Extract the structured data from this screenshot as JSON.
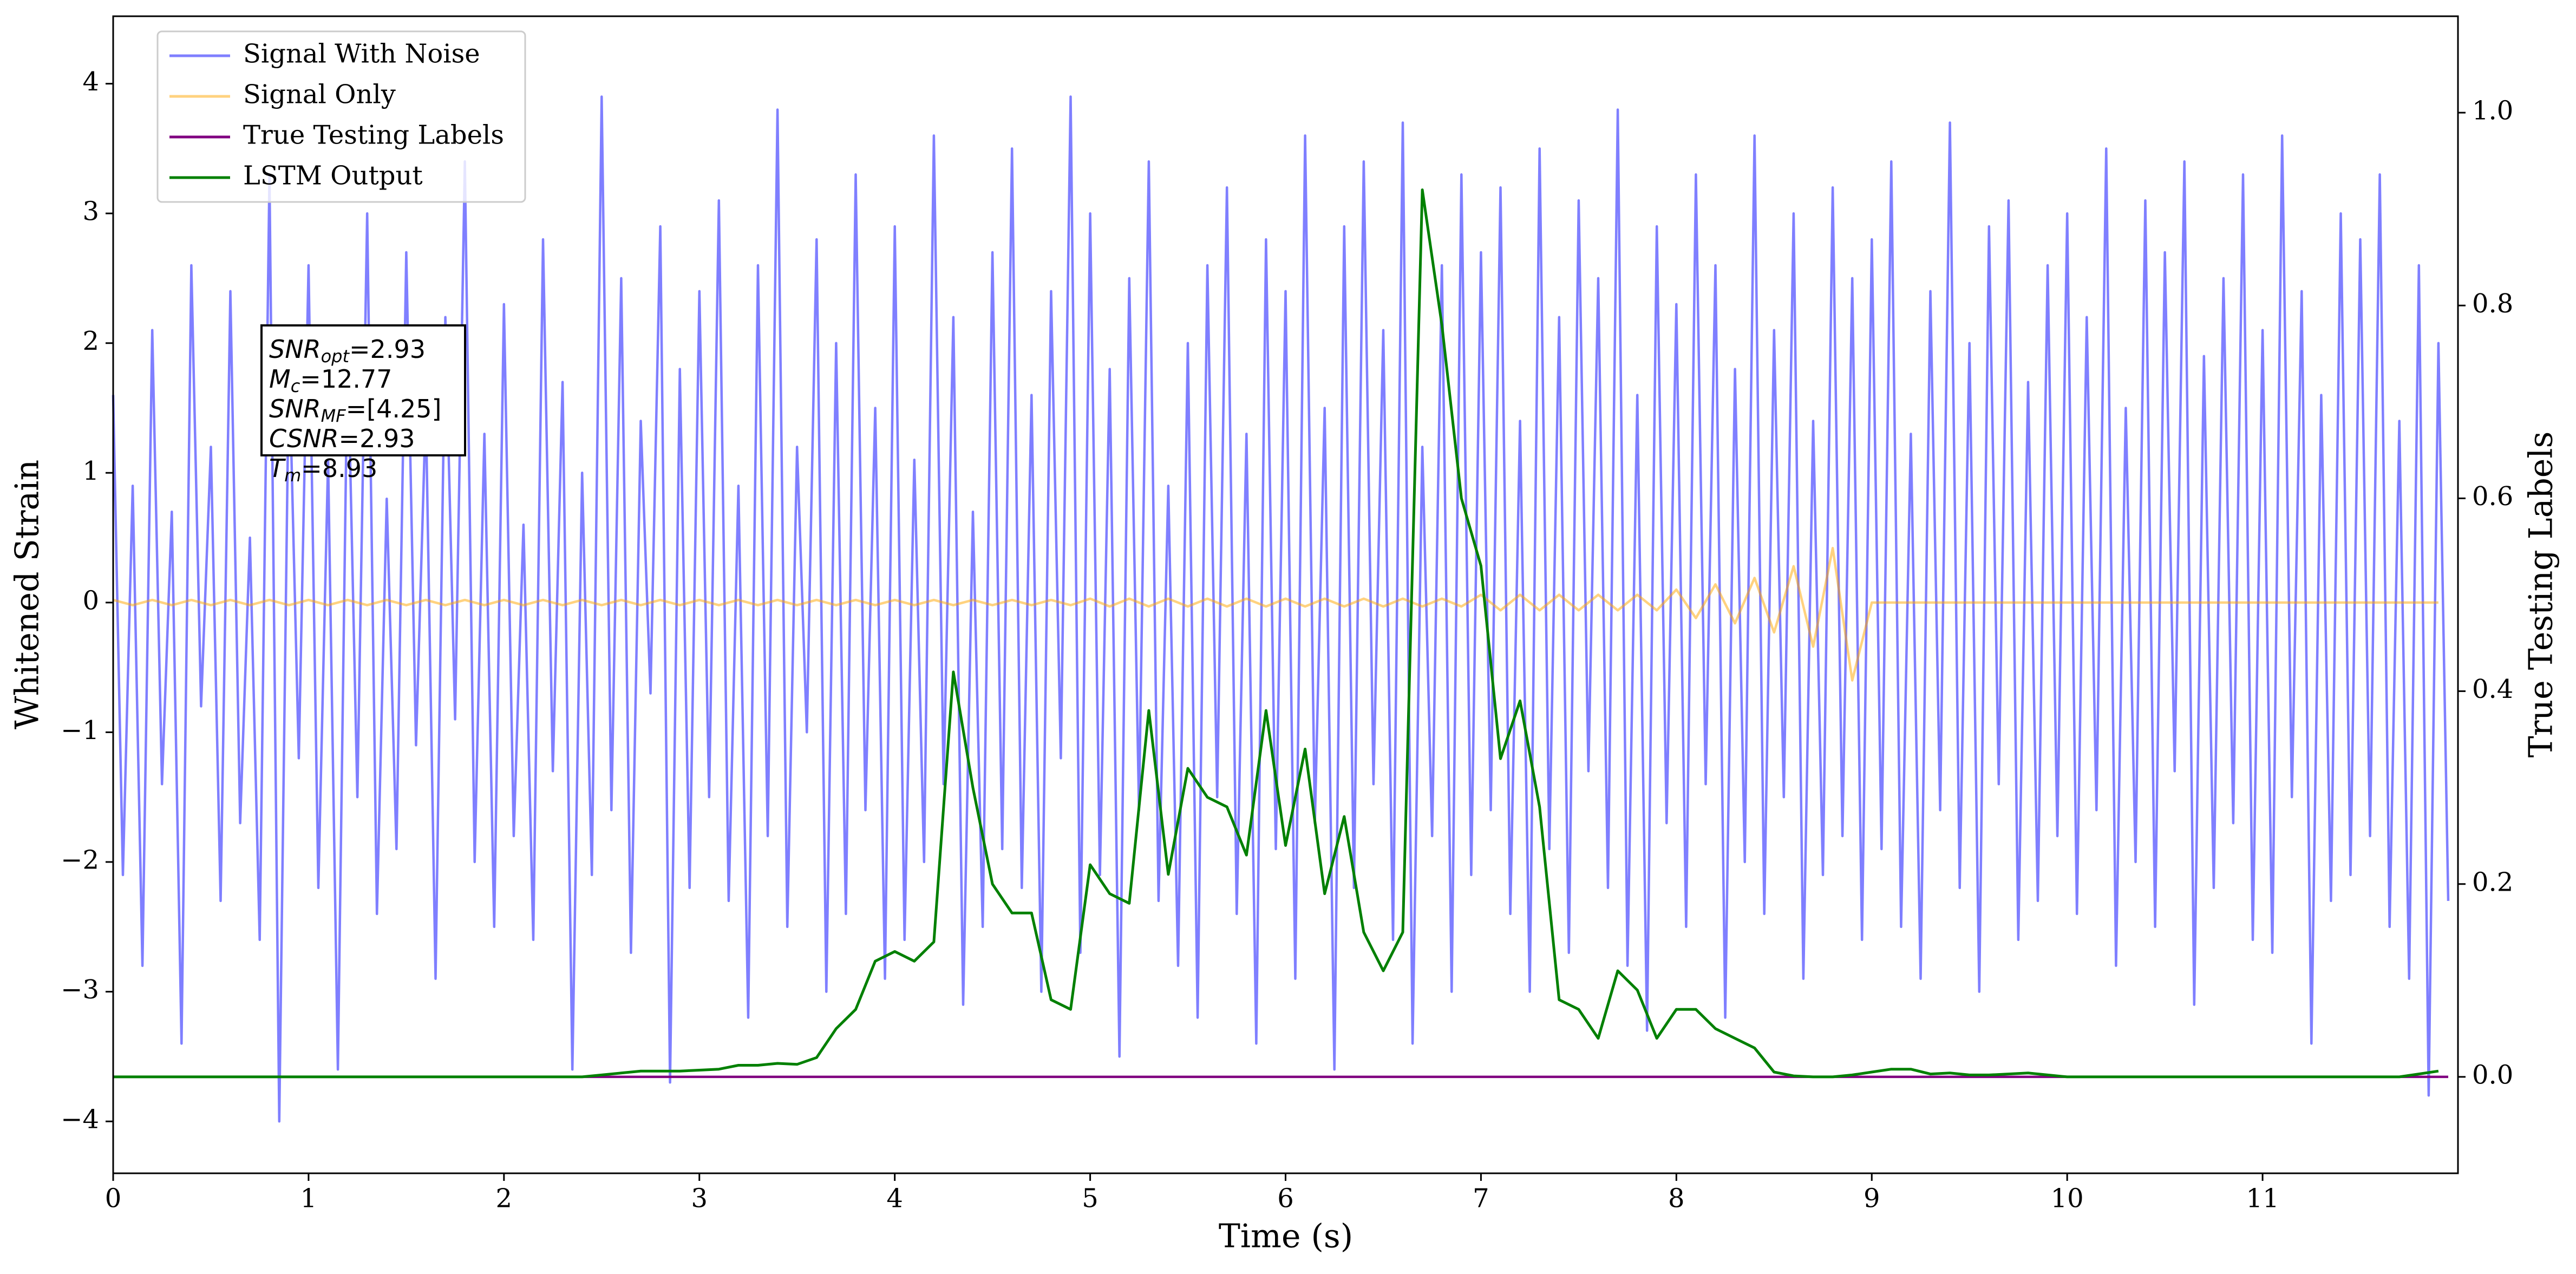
{
  "chart_data": {
    "type": "line",
    "xlabel": "Time (s)",
    "ylabel": "Whitened Strain",
    "y2label": "True Testing Labels",
    "xlim": [
      0,
      12
    ],
    "xticks": [
      0,
      1,
      2,
      3,
      4,
      5,
      6,
      7,
      8,
      9,
      10,
      11
    ],
    "ylim": [
      -4.4,
      4.52
    ],
    "yticks": [
      {
        "value": -4,
        "label": "−4"
      },
      {
        "value": -3,
        "label": "−3"
      },
      {
        "value": -2,
        "label": "−2"
      },
      {
        "value": -1,
        "label": "−1"
      },
      0,
      1,
      2,
      3,
      4
    ],
    "y2lim": [
      -0.1,
      1.1
    ],
    "y2ticks": [
      {
        "value": 0,
        "label": "0.0"
      },
      {
        "value": 0.2,
        "label": "0.2"
      },
      {
        "value": 0.4,
        "label": "0.4"
      },
      {
        "value": 0.6,
        "label": "0.6"
      },
      {
        "value": 0.8,
        "label": "0.8"
      },
      {
        "value": 1,
        "label": "1.0"
      }
    ],
    "grid": false,
    "legend": "upper left",
    "annotation": {
      "lines": [
        {
          "main": "SNR",
          "sub": "opt",
          "rest": "=2.93"
        },
        {
          "main": "M",
          "sub": "c",
          "rest": "=12.77"
        },
        {
          "main": "SNR",
          "sub": "MF",
          "rest": "=[4.25]"
        },
        {
          "main": "CSNR",
          "rest": "=2.93"
        },
        {
          "main": "T",
          "sub": "m",
          "rest": "=8.93"
        }
      ]
    },
    "series": [
      {
        "name": "Signal With Noise",
        "color": "#7f7fff",
        "opacity": 1,
        "axis": "y",
        "x": [
          0,
          0.05,
          0.1,
          0.15,
          0.2,
          0.25,
          0.3,
          0.35,
          0.4,
          0.45,
          0.5,
          0.55,
          0.6,
          0.65,
          0.7,
          0.75,
          0.8,
          0.85,
          0.9,
          0.95,
          1,
          1.05,
          1.1,
          1.15,
          1.2,
          1.25,
          1.3,
          1.35,
          1.4,
          1.45,
          1.5,
          1.55,
          1.6,
          1.65,
          1.7,
          1.75,
          1.8,
          1.85,
          1.9,
          1.95,
          2,
          2.05,
          2.1,
          2.15,
          2.2,
          2.25,
          2.3,
          2.35,
          2.4,
          2.45,
          2.5,
          2.55,
          2.6,
          2.65,
          2.7,
          2.75,
          2.8,
          2.85,
          2.9,
          2.95,
          3,
          3.05,
          3.1,
          3.15,
          3.2,
          3.25,
          3.3,
          3.35,
          3.4,
          3.45,
          3.5,
          3.55,
          3.6,
          3.65,
          3.7,
          3.75,
          3.8,
          3.85,
          3.9,
          3.95,
          4,
          4.05,
          4.1,
          4.15,
          4.2,
          4.25,
          4.3,
          4.35,
          4.4,
          4.45,
          4.5,
          4.55,
          4.6,
          4.65,
          4.7,
          4.75,
          4.8,
          4.85,
          4.9,
          4.95,
          5,
          5.05,
          5.1,
          5.15,
          5.2,
          5.25,
          5.3,
          5.35,
          5.4,
          5.45,
          5.5,
          5.55,
          5.6,
          5.65,
          5.7,
          5.75,
          5.8,
          5.85,
          5.9,
          5.95,
          6,
          6.05,
          6.1,
          6.15,
          6.2,
          6.25,
          6.3,
          6.35,
          6.4,
          6.45,
          6.5,
          6.55,
          6.6,
          6.65,
          6.7,
          6.75,
          6.8,
          6.85,
          6.9,
          6.95,
          7,
          7.05,
          7.1,
          7.15,
          7.2,
          7.25,
          7.3,
          7.35,
          7.4,
          7.45,
          7.5,
          7.55,
          7.6,
          7.65,
          7.7,
          7.75,
          7.8,
          7.85,
          7.9,
          7.95,
          8,
          8.05,
          8.1,
          8.15,
          8.2,
          8.25,
          8.3,
          8.35,
          8.4,
          8.45,
          8.5,
          8.55,
          8.6,
          8.65,
          8.7,
          8.75,
          8.8,
          8.85,
          8.9,
          8.95,
          9,
          9.05,
          9.1,
          9.15,
          9.2,
          9.25,
          9.3,
          9.35,
          9.4,
          9.45,
          9.5,
          9.55,
          9.6,
          9.65,
          9.7,
          9.75,
          9.8,
          9.85,
          9.9,
          9.95,
          10,
          10.05,
          10.1,
          10.15,
          10.2,
          10.25,
          10.3,
          10.35,
          10.4,
          10.45,
          10.5,
          10.55,
          10.6,
          10.65,
          10.7,
          10.75,
          10.8,
          10.85,
          10.9,
          10.95,
          11,
          11.05,
          11.1,
          11.15,
          11.2,
          11.25,
          11.3,
          11.35,
          11.4,
          11.45,
          11.5,
          11.55,
          11.6,
          11.65,
          11.7,
          11.75,
          11.8,
          11.85,
          11.9,
          11.95
        ],
        "values": [
          1.6,
          -2.1,
          0.9,
          -2.8,
          2.1,
          -1.4,
          0.7,
          -3.4,
          2.6,
          -0.8,
          1.2,
          -2.3,
          2.4,
          -1.7,
          0.5,
          -2.6,
          3.3,
          -4.0,
          1.9,
          -1.2,
          2.6,
          -2.2,
          1.1,
          -3.6,
          2.0,
          -1.5,
          3.0,
          -2.4,
          0.8,
          -1.9,
          2.7,
          -1.1,
          1.5,
          -2.9,
          2.2,
          -0.9,
          3.4,
          -2.0,
          1.3,
          -2.5,
          2.3,
          -1.8,
          0.6,
          -2.6,
          2.8,
          -1.3,
          1.7,
          -3.6,
          1.0,
          -2.1,
          3.9,
          -1.6,
          2.5,
          -2.7,
          1.4,
          -0.7,
          2.9,
          -3.7,
          1.8,
          -2.2,
          2.4,
          -1.5,
          3.1,
          -2.3,
          0.9,
          -3.2,
          2.6,
          -1.8,
          3.8,
          -2.5,
          1.2,
          -1.0,
          2.8,
          -3.0,
          2.0,
          -2.4,
          3.3,
          -1.6,
          1.5,
          -2.9,
          2.9,
          -2.6,
          1.1,
          -2.0,
          3.6,
          -1.4,
          2.2,
          -3.1,
          0.7,
          -2.5,
          2.7,
          -1.9,
          3.5,
          -2.2,
          1.6,
          -3.0,
          2.4,
          -1.2,
          3.9,
          -2.7,
          3.0,
          -2.1,
          1.8,
          -3.5,
          2.5,
          -1.6,
          3.4,
          -2.3,
          0.9,
          -2.8,
          2.0,
          -3.2,
          2.6,
          -1.5,
          3.2,
          -2.4,
          1.3,
          -3.4,
          2.8,
          -1.9,
          2.4,
          -2.9,
          3.6,
          -1.7,
          1.5,
          -3.6,
          2.9,
          -2.2,
          3.4,
          -1.4,
          2.1,
          -2.6,
          3.7,
          -3.4,
          1.2,
          -1.8,
          2.6,
          -3.0,
          3.3,
          -2.1,
          2.7,
          -1.6,
          3.2,
          -2.4,
          1.4,
          -3.0,
          3.5,
          -1.9,
          2.2,
          -2.7,
          3.1,
          -1.3,
          2.5,
          -2.2,
          3.8,
          -2.8,
          1.6,
          -3.3,
          2.9,
          -1.7,
          2.3,
          -2.5,
          3.3,
          -1.4,
          2.6,
          -3.2,
          1.8,
          -2.0,
          3.6,
          -2.4,
          2.1,
          -1.5,
          3.0,
          -2.9,
          1.4,
          -2.1,
          3.2,
          -1.8,
          2.5,
          -2.6,
          2.8,
          -1.9,
          3.4,
          -2.5,
          1.3,
          -2.9,
          2.4,
          -1.6,
          3.7,
          -2.2,
          2.0,
          -3.0,
          2.9,
          -1.4,
          3.1,
          -2.6,
          1.7,
          -2.3,
          2.6,
          -1.8,
          3.0,
          -2.4,
          2.2,
          -1.6,
          3.5,
          -2.8,
          1.5,
          -2.0,
          3.1,
          -2.5,
          2.7,
          -1.3,
          3.4,
          -3.1,
          1.9,
          -2.2,
          2.5,
          -1.7,
          3.3,
          -2.6,
          2.1,
          -2.7,
          3.6,
          -1.5,
          2.4,
          -3.4,
          1.6,
          -2.3,
          3.0,
          -2.1,
          2.8,
          -1.8,
          3.3,
          -2.5,
          1.4,
          -2.9,
          2.6,
          -3.8,
          2.0,
          -2.3
        ]
      },
      {
        "name": "Signal Only",
        "color": "#ffa500",
        "opacity": 0.5,
        "axis": "y",
        "x": [
          0,
          0.1,
          0.2,
          0.3,
          0.4,
          0.5,
          0.6,
          0.7,
          0.8,
          0.9,
          1,
          1.1,
          1.2,
          1.3,
          1.4,
          1.5,
          1.6,
          1.7,
          1.8,
          1.9,
          2,
          2.1,
          2.2,
          2.3,
          2.4,
          2.5,
          2.6,
          2.7,
          2.8,
          2.9,
          3,
          3.1,
          3.2,
          3.3,
          3.4,
          3.5,
          3.6,
          3.7,
          3.8,
          3.9,
          4,
          4.1,
          4.2,
          4.3,
          4.4,
          4.5,
          4.6,
          4.7,
          4.8,
          4.9,
          5,
          5.1,
          5.2,
          5.3,
          5.4,
          5.5,
          5.6,
          5.7,
          5.8,
          5.9,
          6,
          6.1,
          6.2,
          6.3,
          6.4,
          6.5,
          6.6,
          6.7,
          6.8,
          6.9,
          7,
          7.1,
          7.2,
          7.3,
          7.4,
          7.5,
          7.6,
          7.7,
          7.8,
          7.9,
          8,
          8.1,
          8.2,
          8.3,
          8.4,
          8.5,
          8.6,
          8.7,
          8.8,
          8.9,
          9,
          9.1,
          9.2,
          9.3,
          9.4,
          9.5,
          9.6,
          9.7,
          9.8,
          9.9,
          10,
          10.1,
          10.2,
          10.3,
          10.4,
          10.5,
          10.6,
          10.7,
          10.8,
          10.9,
          11,
          11.1,
          11.2,
          11.3,
          11.4,
          11.5,
          11.6,
          11.7,
          11.8,
          11.9
        ],
        "values": [
          0.02,
          -0.02,
          0.02,
          -0.02,
          0.02,
          -0.02,
          0.02,
          -0.02,
          0.02,
          -0.02,
          0.02,
          -0.02,
          0.02,
          -0.02,
          0.02,
          -0.02,
          0.02,
          -0.02,
          0.02,
          -0.02,
          0.02,
          -0.02,
          0.02,
          -0.02,
          0.02,
          -0.02,
          0.02,
          -0.02,
          0.02,
          -0.02,
          0.02,
          -0.02,
          0.02,
          -0.02,
          0.02,
          -0.02,
          0.02,
          -0.02,
          0.02,
          -0.02,
          0.02,
          -0.02,
          0.02,
          -0.02,
          0.02,
          -0.02,
          0.02,
          -0.02,
          0.02,
          -0.02,
          0.03,
          -0.03,
          0.03,
          -0.03,
          0.03,
          -0.03,
          0.03,
          -0.03,
          0.03,
          -0.03,
          0.03,
          -0.03,
          0.03,
          -0.03,
          0.03,
          -0.03,
          0.03,
          -0.03,
          0.03,
          -0.03,
          0.06,
          -0.06,
          0.06,
          -0.06,
          0.06,
          -0.06,
          0.06,
          -0.06,
          0.06,
          -0.06,
          0.1,
          -0.12,
          0.14,
          -0.16,
          0.19,
          -0.23,
          0.28,
          -0.34,
          0.42,
          -0.6,
          0,
          0,
          0,
          0,
          0,
          0,
          0,
          0,
          0,
          0,
          0,
          0,
          0,
          0,
          0,
          0,
          0,
          0,
          0,
          0,
          0,
          0,
          0,
          0,
          0,
          0,
          0,
          0,
          0,
          0
        ]
      },
      {
        "name": "True Testing  Labels",
        "color": "purple",
        "opacity": 1,
        "axis": "y2",
        "x": [
          0,
          11.95
        ],
        "values": [
          0,
          0
        ]
      },
      {
        "name": "LSTM Output",
        "color": "green",
        "opacity": 1,
        "axis": "y2",
        "x": [
          0,
          0.1,
          0.2,
          0.3,
          0.4,
          0.5,
          0.6,
          0.7,
          0.8,
          0.9,
          1,
          1.1,
          1.2,
          1.3,
          1.4,
          1.5,
          1.6,
          1.7,
          1.8,
          1.9,
          2,
          2.1,
          2.2,
          2.3,
          2.4,
          2.5,
          2.6,
          2.7,
          2.8,
          2.9,
          3,
          3.1,
          3.2,
          3.3,
          3.4,
          3.5,
          3.6,
          3.7,
          3.8,
          3.9,
          4,
          4.1,
          4.2,
          4.3,
          4.4,
          4.5,
          4.6,
          4.7,
          4.8,
          4.9,
          5,
          5.1,
          5.2,
          5.3,
          5.4,
          5.5,
          5.6,
          5.7,
          5.8,
          5.9,
          6,
          6.1,
          6.2,
          6.3,
          6.4,
          6.5,
          6.6,
          6.7,
          6.8,
          6.9,
          7,
          7.1,
          7.2,
          7.3,
          7.4,
          7.5,
          7.6,
          7.7,
          7.8,
          7.9,
          8,
          8.1,
          8.2,
          8.3,
          8.4,
          8.5,
          8.6,
          8.7,
          8.8,
          8.9,
          9,
          9.1,
          9.2,
          9.3,
          9.4,
          9.5,
          9.6,
          9.7,
          9.8,
          9.9,
          10,
          10.1,
          10.2,
          10.3,
          10.4,
          10.5,
          10.6,
          10.7,
          10.8,
          10.9,
          11,
          11.1,
          11.2,
          11.3,
          11.4,
          11.5,
          11.6,
          11.7,
          11.8,
          11.9
        ],
        "values": [
          0,
          0,
          0,
          0,
          0,
          0,
          0,
          0,
          0,
          0,
          0,
          0,
          0,
          0,
          0,
          0,
          0,
          0,
          0,
          0,
          0,
          0,
          0,
          0,
          0,
          0.002,
          0.004,
          0.006,
          0.006,
          0.006,
          0.007,
          0.008,
          0.012,
          0.012,
          0.014,
          0.013,
          0.02,
          0.05,
          0.07,
          0.12,
          0.13,
          0.12,
          0.14,
          0.42,
          0.3,
          0.2,
          0.17,
          0.17,
          0.08,
          0.07,
          0.22,
          0.19,
          0.18,
          0.38,
          0.21,
          0.32,
          0.29,
          0.28,
          0.23,
          0.38,
          0.24,
          0.34,
          0.19,
          0.27,
          0.15,
          0.11,
          0.15,
          0.92,
          0.78,
          0.6,
          0.53,
          0.33,
          0.39,
          0.28,
          0.08,
          0.07,
          0.04,
          0.11,
          0.09,
          0.04,
          0.07,
          0.07,
          0.05,
          0.04,
          0.03,
          0.005,
          0.001,
          0,
          0,
          0.002,
          0.005,
          0.008,
          0.008,
          0.003,
          0.004,
          0.002,
          0.002,
          0.003,
          0.004,
          0.002,
          0,
          0,
          0,
          0,
          0,
          0,
          0,
          0,
          0,
          0,
          0,
          0,
          0,
          0,
          0,
          0,
          0,
          0,
          0.003,
          0.006
        ]
      }
    ]
  }
}
